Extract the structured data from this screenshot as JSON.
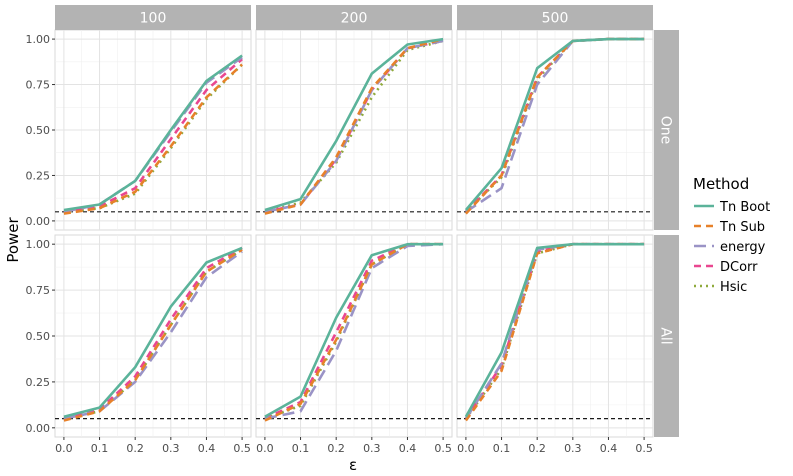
{
  "chart_data": {
    "type": "line",
    "facet_columns": [
      "100",
      "200",
      "500"
    ],
    "facet_rows": [
      "One",
      "All"
    ],
    "x": [
      0.0,
      0.1,
      0.2,
      0.3,
      0.4,
      0.5
    ],
    "x_tick_labels": [
      "0.0",
      "0.1",
      "0.2",
      "0.3",
      "0.4",
      "0.5"
    ],
    "y_tick_labels": [
      "0.00",
      "0.25",
      "0.50",
      "0.75",
      "1.00"
    ],
    "xlim": [
      -0.025,
      0.525
    ],
    "ylim": [
      -0.05,
      1.05
    ],
    "xlabel": "ε",
    "ylabel": "Power",
    "reference_line": 0.05,
    "grid": true,
    "legend": {
      "title": "Method",
      "position": "right",
      "entries": [
        {
          "name": "Tn Boot",
          "color": "#5bb39a",
          "dash": "solid"
        },
        {
          "name": "Tn Sub",
          "color": "#e7812a",
          "dash": "dashed"
        },
        {
          "name": "energy",
          "color": "#9a93c6",
          "dash": "longdash"
        },
        {
          "name": "DCorr",
          "color": "#e94790",
          "dash": "dashed"
        },
        {
          "name": "Hsic",
          "color": "#8faa3c",
          "dash": "dotted"
        }
      ]
    },
    "panels": [
      {
        "row": "One",
        "col": "100",
        "series": {
          "Tn Boot": [
            0.06,
            0.09,
            0.22,
            0.5,
            0.77,
            0.91
          ],
          "Tn Sub": [
            0.04,
            0.07,
            0.16,
            0.41,
            0.68,
            0.86
          ],
          "energy": [
            0.05,
            0.09,
            0.22,
            0.49,
            0.76,
            0.9
          ],
          "DCorr": [
            0.05,
            0.08,
            0.18,
            0.45,
            0.72,
            0.89
          ],
          "Hsic": [
            0.05,
            0.07,
            0.15,
            0.4,
            0.67,
            0.86
          ]
        }
      },
      {
        "row": "One",
        "col": "200",
        "series": {
          "Tn Boot": [
            0.06,
            0.12,
            0.44,
            0.81,
            0.97,
            1.0
          ],
          "Tn Sub": [
            0.04,
            0.09,
            0.35,
            0.73,
            0.95,
            1.0
          ],
          "energy": [
            0.05,
            0.09,
            0.33,
            0.72,
            0.95,
            0.99
          ],
          "DCorr": [
            0.05,
            0.09,
            0.34,
            0.72,
            0.95,
            0.99
          ],
          "Hsic": [
            0.05,
            0.1,
            0.32,
            0.68,
            0.94,
            0.99
          ]
        }
      },
      {
        "row": "One",
        "col": "500",
        "series": {
          "Tn Boot": [
            0.06,
            0.29,
            0.84,
            0.99,
            1.0,
            1.0
          ],
          "Tn Sub": [
            0.04,
            0.25,
            0.79,
            0.99,
            1.0,
            1.0
          ],
          "energy": [
            0.05,
            0.18,
            0.75,
            0.99,
            1.0,
            1.0
          ],
          "DCorr": [
            0.05,
            0.25,
            0.79,
            0.99,
            1.0,
            1.0
          ],
          "Hsic": [
            0.05,
            0.24,
            0.78,
            0.99,
            1.0,
            1.0
          ]
        }
      },
      {
        "row": "All",
        "col": "100",
        "series": {
          "Tn Boot": [
            0.06,
            0.11,
            0.33,
            0.66,
            0.9,
            0.98
          ],
          "Tn Sub": [
            0.04,
            0.09,
            0.26,
            0.56,
            0.85,
            0.97
          ],
          "energy": [
            0.05,
            0.09,
            0.25,
            0.52,
            0.82,
            0.96
          ],
          "DCorr": [
            0.05,
            0.1,
            0.28,
            0.59,
            0.87,
            0.98
          ],
          "Hsic": [
            0.05,
            0.09,
            0.26,
            0.56,
            0.85,
            0.97
          ]
        }
      },
      {
        "row": "All",
        "col": "200",
        "series": {
          "Tn Boot": [
            0.06,
            0.17,
            0.6,
            0.94,
            1.0,
            1.0
          ],
          "Tn Sub": [
            0.04,
            0.13,
            0.48,
            0.89,
            1.0,
            1.0
          ],
          "energy": [
            0.05,
            0.09,
            0.42,
            0.87,
            0.99,
            1.0
          ],
          "DCorr": [
            0.05,
            0.14,
            0.52,
            0.91,
            1.0,
            1.0
          ],
          "Hsic": [
            0.05,
            0.12,
            0.47,
            0.89,
            1.0,
            1.0
          ]
        }
      },
      {
        "row": "All",
        "col": "500",
        "series": {
          "Tn Boot": [
            0.06,
            0.41,
            0.98,
            1.0,
            1.0,
            1.0
          ],
          "Tn Sub": [
            0.04,
            0.31,
            0.95,
            1.0,
            1.0,
            1.0
          ],
          "energy": [
            0.05,
            0.35,
            0.97,
            1.0,
            1.0,
            1.0
          ],
          "DCorr": [
            0.05,
            0.34,
            0.96,
            1.0,
            1.0,
            1.0
          ],
          "Hsic": [
            0.05,
            0.32,
            0.95,
            1.0,
            1.0,
            1.0
          ]
        }
      }
    ]
  }
}
